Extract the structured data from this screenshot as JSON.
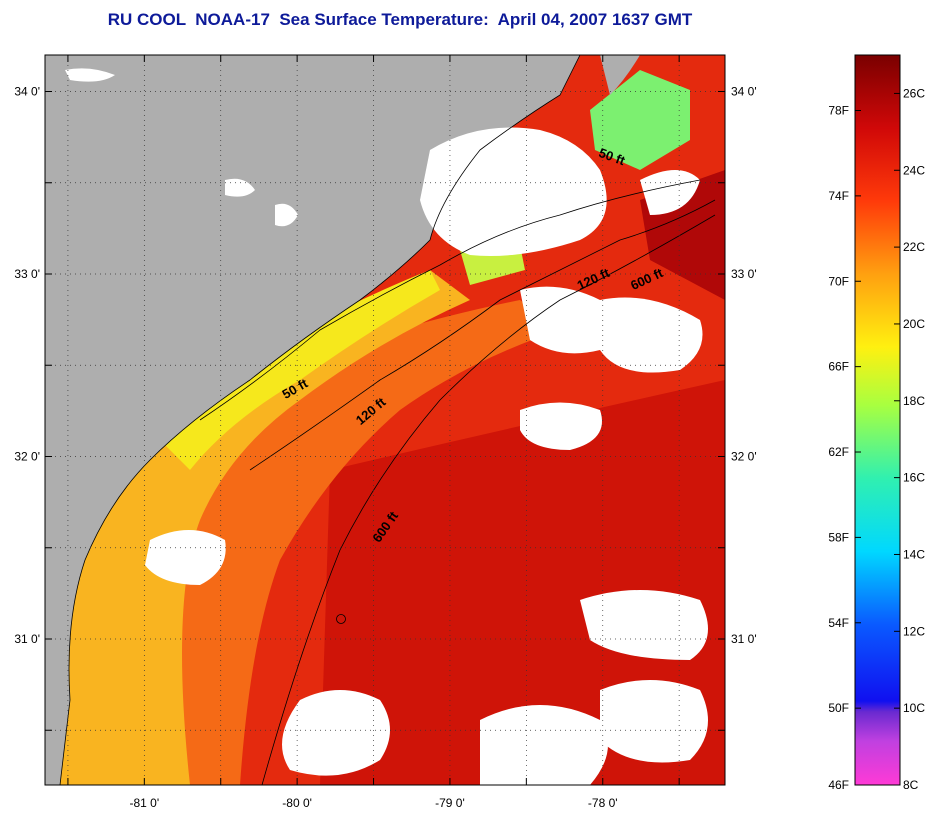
{
  "title": "RU COOL  NOAA-17  Sea Surface Temperature:  April 04, 2007 1637 GMT",
  "map": {
    "lon_range": [
      -81.65,
      -77.2
    ],
    "lat_range": [
      30.2,
      34.2
    ],
    "x_ticks": [
      {
        "value": -81,
        "label": "-81 0'"
      },
      {
        "value": -80,
        "label": "-80 0'"
      },
      {
        "value": -79,
        "label": "-79 0'"
      },
      {
        "value": -78,
        "label": "-78 0'"
      }
    ],
    "y_ticks": [
      {
        "value": 34,
        "label": "34 0'"
      },
      {
        "value": 33,
        "label": "33 0'"
      },
      {
        "value": 32,
        "label": "32 0'"
      },
      {
        "value": 31,
        "label": "31 0'"
      }
    ],
    "grid": "dotted",
    "colors": {
      "land": "#aeaeae",
      "cloud": "#ffffff",
      "warm": "#e01a0a",
      "mid": "#f47a14",
      "cool": "#f6e419",
      "cold": "#4cf0a0"
    },
    "contour_labels": [
      {
        "text": "50 ft",
        "lon": -77.95,
        "lat": 33.62,
        "angle": 20
      },
      {
        "text": "120 ft",
        "lon": -78.05,
        "lat": 32.95,
        "angle": -25
      },
      {
        "text": "600 ft",
        "lon": -77.7,
        "lat": 32.95,
        "angle": -25
      },
      {
        "text": "50 ft",
        "lon": -80.0,
        "lat": 32.35,
        "angle": -30
      },
      {
        "text": "120 ft",
        "lon": -79.5,
        "lat": 32.23,
        "angle": -40
      },
      {
        "text": "600 ft",
        "lon": -79.4,
        "lat": 31.6,
        "angle": -55
      }
    ]
  },
  "colorbar": {
    "fahrenheit_labels": [
      "78F",
      "74F",
      "70F",
      "66F",
      "62F",
      "58F",
      "54F",
      "50F",
      "46F"
    ],
    "celsius_labels": [
      "26C",
      "24C",
      "22C",
      "20C",
      "18C",
      "16C",
      "14C",
      "12C",
      "10C",
      "8C"
    ],
    "range_c": [
      8,
      27
    ]
  }
}
